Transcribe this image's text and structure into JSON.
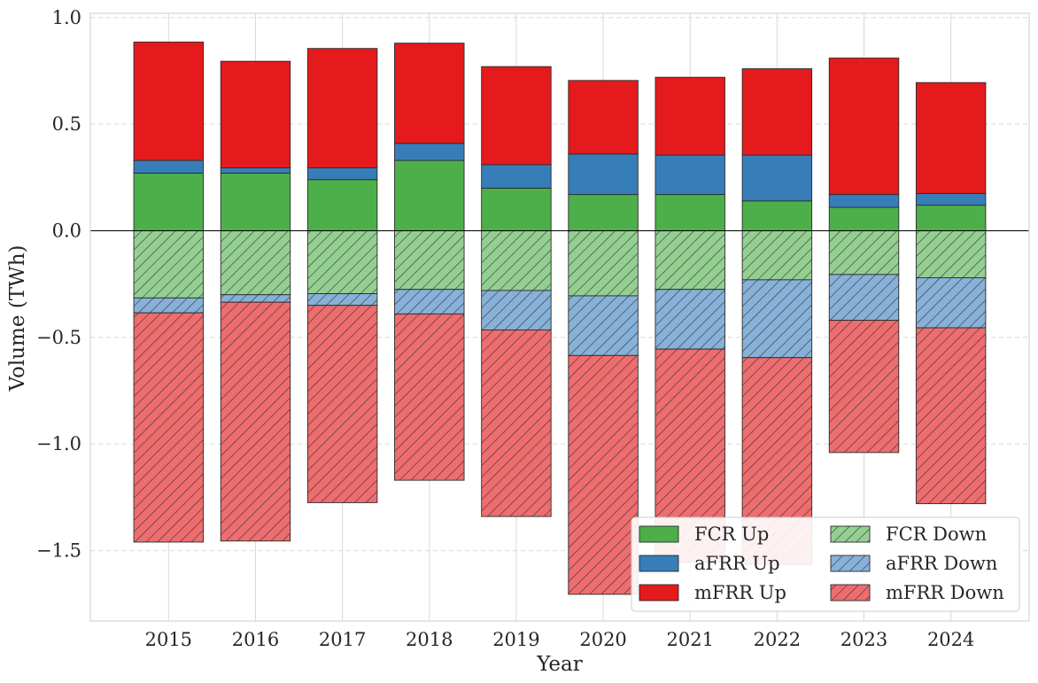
{
  "chart_data": {
    "type": "bar",
    "stacked": true,
    "diverging": true,
    "title": "",
    "xlabel": "Year",
    "ylabel": "Volume (TWh)",
    "ylim": [
      -1.83,
      1.02
    ],
    "yticks": [
      1.0,
      0.5,
      0.0,
      -0.5,
      -1.0,
      -1.5
    ],
    "ytick_labels": [
      "1.0",
      "0.5",
      "0.0",
      "−0.5",
      "−1.0",
      "−1.5"
    ],
    "grid": true,
    "legend_position": "lower-right",
    "categories": [
      "2015",
      "2016",
      "2017",
      "2018",
      "2019",
      "2020",
      "2021",
      "2022",
      "2023",
      "2024"
    ],
    "series": [
      {
        "name": "FCR Up",
        "direction": "up",
        "color": "#4daf4a",
        "hatch": false,
        "values": [
          0.27,
          0.27,
          0.24,
          0.33,
          0.2,
          0.17,
          0.17,
          0.14,
          0.11,
          0.12
        ]
      },
      {
        "name": "aFRR Up",
        "direction": "up",
        "color": "#377eb8",
        "hatch": false,
        "values": [
          0.06,
          0.025,
          0.055,
          0.08,
          0.11,
          0.19,
          0.185,
          0.215,
          0.06,
          0.055
        ]
      },
      {
        "name": "mFRR Up",
        "direction": "up",
        "color": "#e41a1c",
        "hatch": false,
        "values": [
          0.555,
          0.5,
          0.56,
          0.47,
          0.46,
          0.345,
          0.365,
          0.405,
          0.64,
          0.52
        ]
      },
      {
        "name": "FCR Down",
        "direction": "down",
        "color": "#94cf92",
        "hatch": true,
        "values": [
          -0.315,
          -0.3,
          -0.295,
          -0.275,
          -0.28,
          -0.305,
          -0.275,
          -0.23,
          -0.205,
          -0.22
        ]
      },
      {
        "name": "aFRR Down",
        "direction": "down",
        "color": "#87b1d8",
        "hatch": true,
        "values": [
          -0.07,
          -0.035,
          -0.055,
          -0.115,
          -0.185,
          -0.28,
          -0.28,
          -0.365,
          -0.215,
          -0.235
        ]
      },
      {
        "name": "mFRR Down",
        "direction": "down",
        "color": "#ee6d6f",
        "hatch": true,
        "values": [
          -1.075,
          -1.12,
          -0.925,
          -0.78,
          -0.875,
          -1.12,
          -1.0,
          -0.97,
          -0.62,
          -0.825
        ]
      }
    ]
  }
}
